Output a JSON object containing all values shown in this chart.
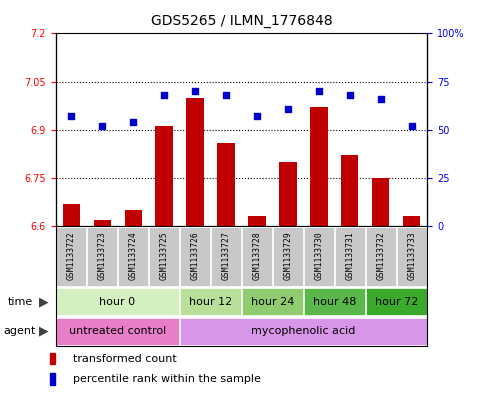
{
  "title": "GDS5265 / ILMN_1776848",
  "samples": [
    "GSM1133722",
    "GSM1133723",
    "GSM1133724",
    "GSM1133725",
    "GSM1133726",
    "GSM1133727",
    "GSM1133728",
    "GSM1133729",
    "GSM1133730",
    "GSM1133731",
    "GSM1133732",
    "GSM1133733"
  ],
  "bar_values": [
    6.67,
    6.62,
    6.65,
    6.91,
    7.0,
    6.86,
    6.63,
    6.8,
    6.97,
    6.82,
    6.75,
    6.63
  ],
  "percentile_values": [
    57,
    52,
    54,
    68,
    70,
    68,
    57,
    61,
    70,
    68,
    66,
    52
  ],
  "ylim_left": [
    6.6,
    7.2
  ],
  "ylim_right": [
    0,
    100
  ],
  "yticks_left": [
    6.6,
    6.75,
    6.9,
    7.05,
    7.2
  ],
  "ytick_labels_left": [
    "6.6",
    "6.75",
    "6.9",
    "7.05",
    "7.2"
  ],
  "yticks_right": [
    0,
    25,
    50,
    75,
    100
  ],
  "ytick_labels_right": [
    "0",
    "25",
    "50",
    "75",
    "100%"
  ],
  "bar_color": "#c00000",
  "scatter_color": "#0000cc",
  "bar_bottom": 6.6,
  "bar_width": 0.55,
  "time_groups": [
    {
      "label": "hour 0",
      "start": 0,
      "end": 3,
      "color": "#d4f0c0"
    },
    {
      "label": "hour 12",
      "start": 4,
      "end": 5,
      "color": "#b8e09a"
    },
    {
      "label": "hour 24",
      "start": 6,
      "end": 7,
      "color": "#8fcc70"
    },
    {
      "label": "hour 48",
      "start": 8,
      "end": 9,
      "color": "#5ab84a"
    },
    {
      "label": "hour 72",
      "start": 10,
      "end": 11,
      "color": "#3aaa2a"
    }
  ],
  "agent_groups": [
    {
      "label": "untreated control",
      "start": 0,
      "end": 3,
      "color": "#e87dc8"
    },
    {
      "label": "mycophenolic acid",
      "start": 4,
      "end": 11,
      "color": "#d896e8"
    }
  ],
  "legend_items": [
    {
      "label": "transformed count",
      "color": "#c00000"
    },
    {
      "label": "percentile rank within the sample",
      "color": "#0000cc"
    }
  ],
  "sample_box_color": "#c8c8c8",
  "grid_yticks": [
    6.75,
    6.9,
    7.05
  ],
  "title_fontsize": 10,
  "axis_fontsize": 8,
  "label_fontsize": 8,
  "legend_fontsize": 8,
  "tick_label_fontsize": 7
}
